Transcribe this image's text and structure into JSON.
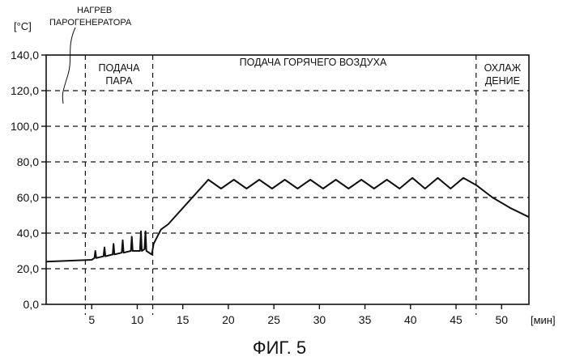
{
  "chart_data": {
    "type": "line",
    "ylabel": "[°C]",
    "xlabel": "[мин]",
    "xlim": [
      0,
      53
    ],
    "ylim": [
      0,
      140
    ],
    "x_ticks": [
      5,
      10,
      15,
      20,
      25,
      30,
      35,
      40,
      45,
      50
    ],
    "y_ticks": [
      0,
      20,
      40,
      60,
      80,
      100,
      120,
      140
    ],
    "y_tick_labels": [
      "0,0",
      "20,0",
      "40,0",
      "60,0",
      "80,0",
      "100,0",
      "120,0",
      "140,0"
    ],
    "grid": {
      "horizontal": "dashed",
      "vertical": "none"
    },
    "phase_boundaries": [
      4.3,
      11.7,
      47.2
    ],
    "phases": [
      {
        "label_lines": [
          "ПОДАЧА",
          "ПАРА"
        ],
        "x_center": 8.0,
        "y": 131
      },
      {
        "label_lines": [
          "ПОДАЧА ГОРЯЧЕГО ВОЗДУХА"
        ],
        "x_center": 29.3,
        "y": 134
      },
      {
        "label_lines": [
          "ОХЛАЖ",
          "ДЕНИЕ"
        ],
        "x_center": 50.1,
        "y": 131
      }
    ],
    "annotation": {
      "lines": [
        "НАГРЕВ",
        "ПАРОГЕНЕРАТОРА"
      ]
    },
    "series": [
      {
        "x": [
          0,
          5.0,
          5.3,
          5.4,
          5.5,
          6.3,
          6.4,
          6.5,
          7.3,
          7.4,
          7.5,
          8.3,
          8.4,
          8.5,
          9.3,
          9.4,
          9.5,
          10.3,
          10.4,
          10.5,
          10.8,
          10.9,
          11.0,
          11.6,
          11.8,
          12.6,
          13.4,
          17.8,
          19.2,
          20.6,
          22.0,
          23.4,
          24.8,
          26.2,
          27.6,
          29.0,
          30.4,
          31.8,
          33.2,
          34.6,
          36.0,
          37.4,
          38.8,
          40.2,
          41.6,
          43.0,
          44.4,
          45.8,
          47.2,
          49.0,
          51.0,
          53.0
        ],
        "y": [
          24,
          25,
          26,
          30,
          26,
          27,
          32,
          27,
          28,
          34,
          28,
          29,
          36,
          29,
          30,
          38,
          30,
          30,
          41,
          30,
          31,
          41,
          30,
          28,
          34,
          42,
          45,
          70,
          65,
          70,
          65,
          70,
          65,
          70,
          65,
          70,
          65,
          70,
          65,
          70,
          65,
          70,
          65,
          71,
          65,
          71,
          65,
          71,
          67,
          60,
          54,
          49
        ]
      }
    ]
  },
  "caption": "ФИГ. 5"
}
